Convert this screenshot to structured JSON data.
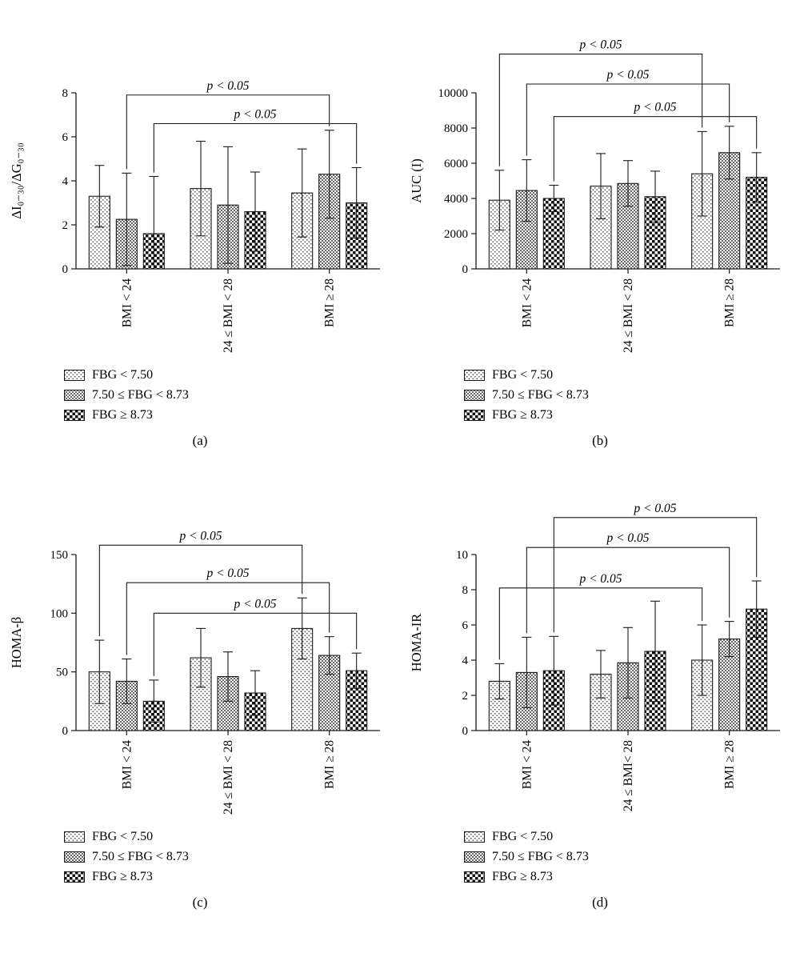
{
  "figure": {
    "background": "#ffffff",
    "line_color": "#1a1a1a"
  },
  "legend": {
    "items": [
      {
        "label": "FBG < 7.50",
        "pattern": "dots"
      },
      {
        "label": "7.50 ≤ FBG < 8.73",
        "pattern": "fine-check"
      },
      {
        "label": "FBG ≥ 8.73",
        "pattern": "bold-check"
      }
    ]
  },
  "chart_data": [
    {
      "id": "a",
      "type": "bar",
      "panel_label": "(a)",
      "ylabel": "ΔI₀₋₃₀/ΔG₀₋₃₀",
      "ylim": [
        0,
        8
      ],
      "yticks": [
        0,
        2,
        4,
        6,
        8
      ],
      "categories": [
        "BMI < 24",
        "24 ≤ BMI < 28",
        "BMI ≥ 28"
      ],
      "series": [
        {
          "name": "FBG < 7.50",
          "pattern": "dots",
          "values": [
            3.3,
            3.65,
            3.45
          ],
          "errors": [
            1.4,
            2.15,
            2.0
          ]
        },
        {
          "name": "7.50 ≤ FBG < 8.73",
          "pattern": "fine-check",
          "values": [
            2.25,
            2.9,
            4.3
          ],
          "errors": [
            2.1,
            2.65,
            2.0
          ]
        },
        {
          "name": "FBG ≥ 8.73",
          "pattern": "bold-check",
          "values": [
            1.6,
            2.6,
            3.0
          ],
          "errors": [
            2.6,
            1.8,
            1.6
          ]
        }
      ],
      "brackets": [
        {
          "label": "p < 0.05",
          "series": 1,
          "from_group": 0,
          "to_group": 2,
          "y": 7.9
        },
        {
          "label": "p < 0.05",
          "series": 2,
          "from_group": 0,
          "to_group": 2,
          "y": 6.6
        }
      ]
    },
    {
      "id": "b",
      "type": "bar",
      "panel_label": "(b)",
      "ylabel": "AUC (I)",
      "ylim": [
        0,
        10000
      ],
      "yticks": [
        0,
        2000,
        4000,
        6000,
        8000,
        10000
      ],
      "categories": [
        "BMI < 24",
        "24 ≤ BMI < 28",
        "BMI ≥ 28"
      ],
      "series": [
        {
          "name": "FBG < 7.50",
          "pattern": "dots",
          "values": [
            3900,
            4700,
            5400
          ],
          "errors": [
            1700,
            1850,
            2400
          ]
        },
        {
          "name": "7.50 ≤ FBG < 8.73",
          "pattern": "fine-check",
          "values": [
            4450,
            4850,
            6600
          ],
          "errors": [
            1750,
            1300,
            1500
          ]
        },
        {
          "name": "FBG ≥ 8.73",
          "pattern": "bold-check",
          "values": [
            4000,
            4100,
            5200
          ],
          "errors": [
            750,
            1450,
            1400
          ]
        }
      ],
      "brackets": [
        {
          "label": "p < 0.05",
          "series": 0,
          "from_group": 0,
          "to_group": 2,
          "y": 12200
        },
        {
          "label": "p < 0.05",
          "series": 1,
          "from_group": 0,
          "to_group": 2,
          "y": 10500
        },
        {
          "label": "p < 0.05",
          "series": 2,
          "from_group": 0,
          "to_group": 2,
          "y": 8650
        }
      ]
    },
    {
      "id": "c",
      "type": "bar",
      "panel_label": "(c)",
      "ylabel": "HOMA-β",
      "ylim": [
        0,
        150
      ],
      "yticks": [
        0,
        50,
        100,
        150
      ],
      "categories": [
        "BMI < 24",
        "24 ≤ BMI < 28",
        "BMI ≥ 28"
      ],
      "series": [
        {
          "name": "FBG < 7.50",
          "pattern": "dots",
          "values": [
            50,
            62,
            87
          ],
          "errors": [
            27,
            25,
            26
          ]
        },
        {
          "name": "7.50 ≤ FBG < 8.73",
          "pattern": "fine-check",
          "values": [
            42,
            46,
            64
          ],
          "errors": [
            19,
            21,
            16
          ]
        },
        {
          "name": "FBG ≥ 8.73",
          "pattern": "bold-check",
          "values": [
            25,
            32,
            51
          ],
          "errors": [
            18,
            19,
            15
          ]
        }
      ],
      "brackets": [
        {
          "label": "p < 0.05",
          "series": 0,
          "from_group": 0,
          "to_group": 2,
          "y": 158
        },
        {
          "label": "p < 0.05",
          "series": 1,
          "from_group": 0,
          "to_group": 2,
          "y": 126
        },
        {
          "label": "p < 0.05",
          "series": 2,
          "from_group": 0,
          "to_group": 2,
          "y": 100
        }
      ]
    },
    {
      "id": "d",
      "type": "bar",
      "panel_label": "(d)",
      "ylabel": "HOMA-IR",
      "ylim": [
        0,
        10
      ],
      "yticks": [
        0,
        2,
        4,
        6,
        8,
        10
      ],
      "categories": [
        "BMI < 24",
        "24 ≤ BMI< 28",
        "BMI ≥ 28"
      ],
      "series": [
        {
          "name": "FBG < 7.50",
          "pattern": "dots",
          "values": [
            2.8,
            3.2,
            4.0
          ],
          "errors": [
            1.0,
            1.35,
            2.0
          ]
        },
        {
          "name": "7.50 ≤ FBG < 8.73",
          "pattern": "fine-check",
          "values": [
            3.3,
            3.85,
            5.2
          ],
          "errors": [
            2.0,
            2.0,
            1.0
          ]
        },
        {
          "name": "FBG ≥ 8.73",
          "pattern": "bold-check",
          "values": [
            3.4,
            4.5,
            6.9
          ],
          "errors": [
            1.95,
            2.85,
            1.6
          ]
        }
      ],
      "brackets": [
        {
          "label": "p < 0.05",
          "series": 2,
          "from_group": 0,
          "to_group": 2,
          "y": 12.1
        },
        {
          "label": "p < 0.05",
          "series": 1,
          "from_group": 0,
          "to_group": 2,
          "y": 10.4
        },
        {
          "label": "p < 0.05",
          "series": 0,
          "from_group": 0,
          "to_group": 2,
          "y": 8.1
        }
      ]
    }
  ]
}
